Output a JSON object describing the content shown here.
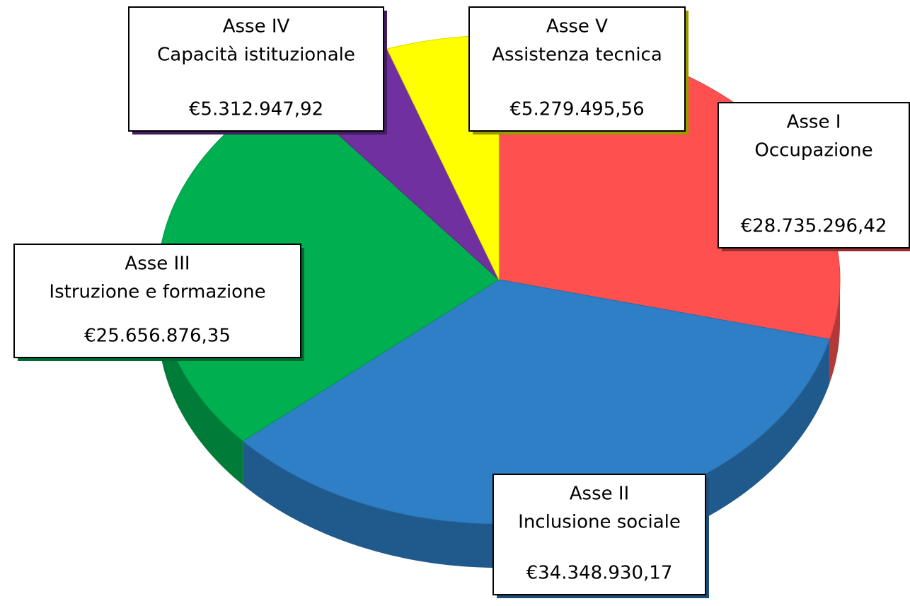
{
  "chart_data": {
    "type": "pie",
    "categories": [
      "Asse I",
      "Asse II",
      "Asse III",
      "Asse IV",
      "Asse V"
    ],
    "descriptions": [
      "Occupazione",
      "Inclusione sociale",
      "Istruzione e formazione",
      "Capacità istituzionale",
      "Assistenza tecnica"
    ],
    "values": [
      28735296.42,
      34348930.17,
      25656876.35,
      5312947.92,
      5279495.56
    ],
    "value_labels": [
      "€28.735.296,42",
      "€34.348.930,17",
      "€25.656.876,35",
      "€5.312.947,92",
      "€5.279.495,56"
    ],
    "colors": [
      "#ff5050",
      "#2e7fc6",
      "#00b050",
      "#7030a0",
      "#ffff00"
    ]
  }
}
